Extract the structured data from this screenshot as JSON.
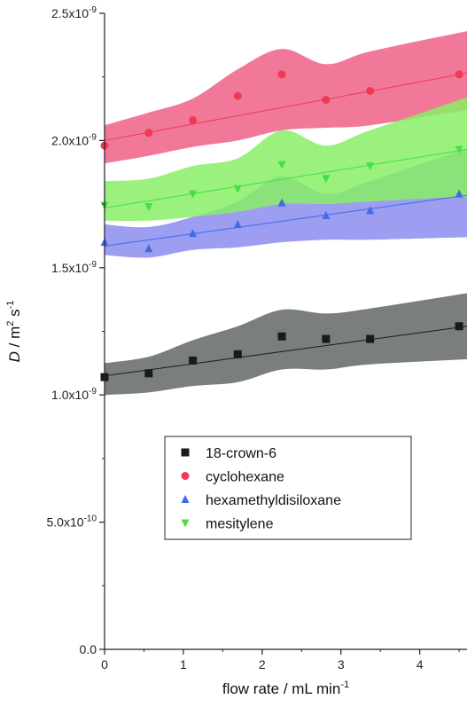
{
  "chart_data": {
    "type": "scatter",
    "xlabel": "flow rate / mL min-1",
    "ylabel": "D / m2 s-1",
    "xlim": [
      0,
      4.6
    ],
    "ylim": [
      0,
      2.5e-09
    ],
    "x_ticks": [
      0,
      1,
      2,
      3,
      4
    ],
    "x_tick_labels": [
      "0",
      "1",
      "2",
      "3",
      "4"
    ],
    "y_ticks": [
      0,
      5e-10,
      1e-09,
      1.5e-09,
      2e-09,
      2.5e-09
    ],
    "y_tick_labels": [
      "0.0",
      "5.0x10-10",
      "1.0x10-9",
      "1.5x10-9",
      "2.0x10-9",
      "2.5x10-9"
    ],
    "legend_position": "center",
    "grid": false,
    "series": [
      {
        "name": "18-crown-6",
        "marker": "square",
        "color": "#1a1a1a",
        "band_color": "#646964",
        "x": [
          0,
          0.56,
          1.12,
          1.69,
          2.25,
          2.81,
          3.37,
          4.5
        ],
        "y": [
          1.07e-09,
          1.085e-09,
          1.135e-09,
          1.16e-09,
          1.23e-09,
          1.22e-09,
          1.22e-09,
          1.27e-09
        ],
        "fit": [
          1.075e-09,
          1.27e-09
        ],
        "band_upper": [
          1.125e-09,
          1.15e-09,
          1.215e-09,
          1.27e-09,
          1.335e-09,
          1.32e-09,
          1.34e-09,
          1.4e-09
        ],
        "band_lower": [
          1e-09,
          1.01e-09,
          1.035e-09,
          1.05e-09,
          1.1e-09,
          1.1e-09,
          1.12e-09,
          1.14e-09
        ]
      },
      {
        "name": "cyclohexane",
        "marker": "circle",
        "color": "#ee3a55",
        "band_color": "#f06088",
        "x": [
          0,
          0.56,
          1.12,
          1.69,
          2.25,
          2.81,
          3.37,
          4.5
        ],
        "y": [
          1.98e-09,
          2.03e-09,
          2.08e-09,
          2.175e-09,
          2.26e-09,
          2.16e-09,
          2.195e-09,
          2.26e-09
        ],
        "fit": [
          2e-09,
          2.265e-09
        ],
        "band_upper": [
          2.06e-09,
          2.11e-09,
          2.165e-09,
          2.28e-09,
          2.36e-09,
          2.3e-09,
          2.35e-09,
          2.43e-09
        ],
        "band_lower": [
          1.91e-09,
          1.94e-09,
          1.975e-09,
          2e-09,
          2.04e-09,
          2.05e-09,
          2.06e-09,
          2.12e-09
        ]
      },
      {
        "name": "hexamethyldisiloxane",
        "marker": "triangle-up",
        "color": "#3f6ce8",
        "band_color": "#8c8cf0",
        "x": [
          0,
          0.56,
          1.12,
          1.69,
          2.25,
          2.81,
          3.37,
          4.5
        ],
        "y": [
          1.6e-09,
          1.575e-09,
          1.635e-09,
          1.67e-09,
          1.755e-09,
          1.705e-09,
          1.725e-09,
          1.79e-09
        ],
        "fit": [
          1.585e-09,
          1.785e-09
        ],
        "band_upper": [
          1.67e-09,
          1.66e-09,
          1.7e-09,
          1.76e-09,
          1.86e-09,
          1.79e-09,
          1.84e-09,
          1.97e-09
        ],
        "band_lower": [
          1.55e-09,
          1.54e-09,
          1.57e-09,
          1.58e-09,
          1.6e-09,
          1.61e-09,
          1.61e-09,
          1.62e-09
        ]
      },
      {
        "name": "mesitylene",
        "marker": "triangle-down",
        "color": "#44e044",
        "band_color": "#88ee66",
        "x": [
          0,
          0.56,
          1.12,
          1.69,
          2.25,
          2.81,
          3.37,
          4.5
        ],
        "y": [
          1.745e-09,
          1.74e-09,
          1.79e-09,
          1.81e-09,
          1.905e-09,
          1.85e-09,
          1.9e-09,
          1.965e-09
        ],
        "fit": [
          1.735e-09,
          1.965e-09
        ],
        "band_upper": [
          1.84e-09,
          1.85e-09,
          1.9e-09,
          1.93e-09,
          2.04e-09,
          1.98e-09,
          2.04e-09,
          2.17e-09
        ],
        "band_lower": [
          1.685e-09,
          1.685e-09,
          1.7e-09,
          1.72e-09,
          1.75e-09,
          1.75e-09,
          1.76e-09,
          1.78e-09
        ]
      }
    ]
  }
}
